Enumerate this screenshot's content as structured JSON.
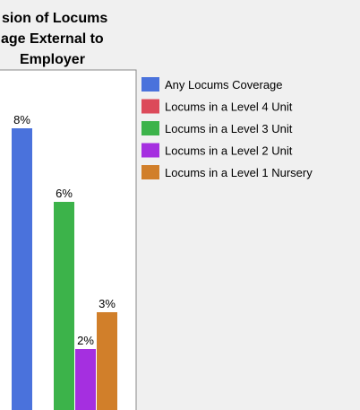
{
  "chart_data": {
    "type": "bar",
    "title": [
      "sion of Locums",
      "age External to",
      "Employer"
    ],
    "categories": [
      "Any Locums Coverage",
      "Locums in a Level 4 Unit",
      "Locums in a Level 3 Unit",
      "Locums in a Level 2 Unit",
      "Locums in a Level 1 Nursery"
    ],
    "values": [
      8,
      0,
      6,
      2,
      3
    ],
    "value_labels": [
      "8%",
      null,
      "6%",
      "2%",
      "3%"
    ],
    "colors": [
      "#4a72dc",
      "#dc4a5a",
      "#3cb34a",
      "#a52fe0",
      "#d17f2a"
    ]
  }
}
